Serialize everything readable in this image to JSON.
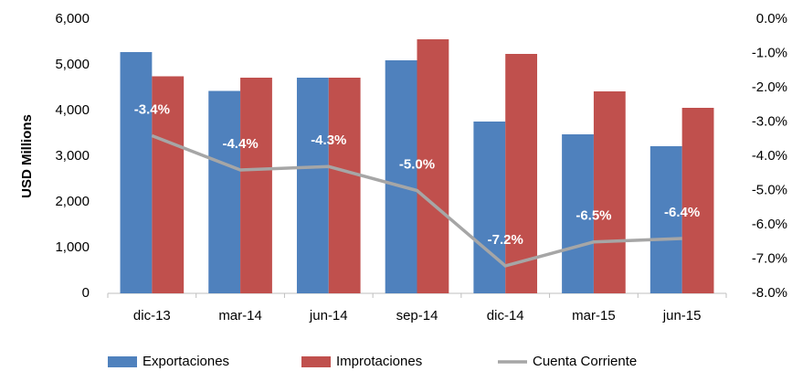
{
  "chart_data": {
    "type": "bar",
    "y_label": "USD Millions",
    "categories": [
      "dic-13",
      "mar-14",
      "jun-14",
      "sep-14",
      "dic-14",
      "mar-15",
      "jun-15"
    ],
    "series": [
      {
        "name": "Exportaciones",
        "color": "#4f81bd",
        "values": [
          5280,
          4430,
          4720,
          5100,
          3760,
          3480,
          3220
        ]
      },
      {
        "name": "Improtaciones",
        "color": "#c0504d",
        "values": [
          4750,
          4720,
          4720,
          5560,
          5240,
          4420,
          4060
        ]
      },
      {
        "name": "Cuenta Corriente",
        "type": "line",
        "axis": "y2",
        "color": "#a6a6a6",
        "values": [
          -3.4,
          -4.4,
          -4.3,
          -5.0,
          -7.2,
          -6.5,
          -6.4
        ],
        "value_labels": [
          "-3.4%",
          "-4.4%",
          "-4.3%",
          "-5.0%",
          "-7.2%",
          "-6.5%",
          "-6.4%"
        ]
      }
    ],
    "ylim": [
      0,
      6000
    ],
    "yticks": [
      0,
      {
        "value": 1000,
        "label": "1,000"
      },
      {
        "value": 2000,
        "label": "2,000"
      },
      {
        "value": 3000,
        "label": "3,000"
      },
      {
        "value": 4000,
        "label": "4,000"
      },
      {
        "value": 5000,
        "label": "5,000"
      },
      {
        "value": 6000,
        "label": "6,000"
      }
    ],
    "y2lim": [
      -8,
      0
    ],
    "y2ticks": [
      {
        "value": 0,
        "label": "0.0%"
      },
      {
        "value": -1,
        "label": "-1.0%"
      },
      {
        "value": -2,
        "label": "-2.0%"
      },
      {
        "value": -3,
        "label": "-3.0%"
      },
      {
        "value": -4,
        "label": "-4.0%"
      },
      {
        "value": -5,
        "label": "-5.0%"
      },
      {
        "value": -6,
        "label": "-6.0%"
      },
      {
        "value": -7,
        "label": "-7.0%"
      },
      {
        "value": -8,
        "label": "-8.0%"
      }
    ],
    "grid": false,
    "legend": "bottom"
  }
}
